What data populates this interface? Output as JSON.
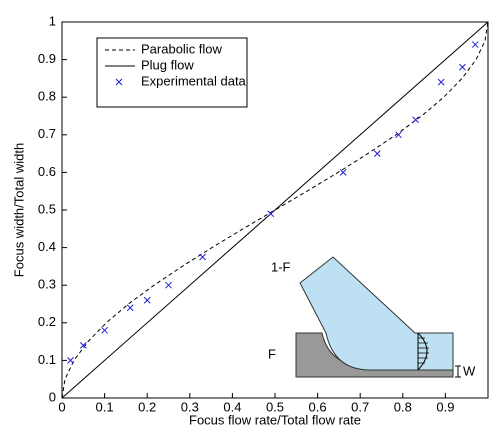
{
  "chart_data": {
    "type": "scatter",
    "xlabel": "Focus flow rate/Total flow rate",
    "ylabel": "Focus width/Total width",
    "xlim": [
      0,
      1
    ],
    "ylim": [
      0,
      1
    ],
    "xticks": [
      0,
      0.1,
      0.2,
      0.3,
      0.4,
      0.5,
      0.6,
      0.7,
      0.8,
      0.9
    ],
    "yticks": [
      0,
      0.1,
      0.2,
      0.3,
      0.4,
      0.5,
      0.6,
      0.7,
      0.8,
      0.9,
      1
    ],
    "legend": "top-left",
    "series": [
      {
        "name": "Parabolic flow",
        "style": "dashed",
        "color": "#000000",
        "x": [
          0,
          0.007,
          0.028,
          0.061,
          0.104,
          0.156,
          0.216,
          0.282,
          0.352,
          0.425,
          0.5,
          0.575,
          0.648,
          0.718,
          0.784,
          0.844,
          0.896,
          0.939,
          0.972,
          0.993,
          1
        ],
        "values": [
          0,
          0.05,
          0.1,
          0.15,
          0.2,
          0.25,
          0.3,
          0.35,
          0.4,
          0.45,
          0.5,
          0.55,
          0.6,
          0.65,
          0.7,
          0.75,
          0.8,
          0.85,
          0.9,
          0.95,
          1
        ]
      },
      {
        "name": "Plug flow",
        "style": "solid",
        "color": "#000000",
        "x": [
          0,
          1
        ],
        "values": [
          0,
          1
        ]
      },
      {
        "name": "Experimental data",
        "style": "marker",
        "color": "#1f1fd6",
        "x": [
          0.02,
          0.05,
          0.1,
          0.16,
          0.2,
          0.25,
          0.33,
          0.49,
          0.66,
          0.74,
          0.79,
          0.83,
          0.89,
          0.94,
          0.97
        ],
        "values": [
          0.1,
          0.14,
          0.18,
          0.24,
          0.26,
          0.3,
          0.375,
          0.49,
          0.6,
          0.65,
          0.7,
          0.74,
          0.84,
          0.88,
          0.94
        ]
      }
    ],
    "annotations": [
      "1-F",
      "F",
      "W"
    ]
  }
}
